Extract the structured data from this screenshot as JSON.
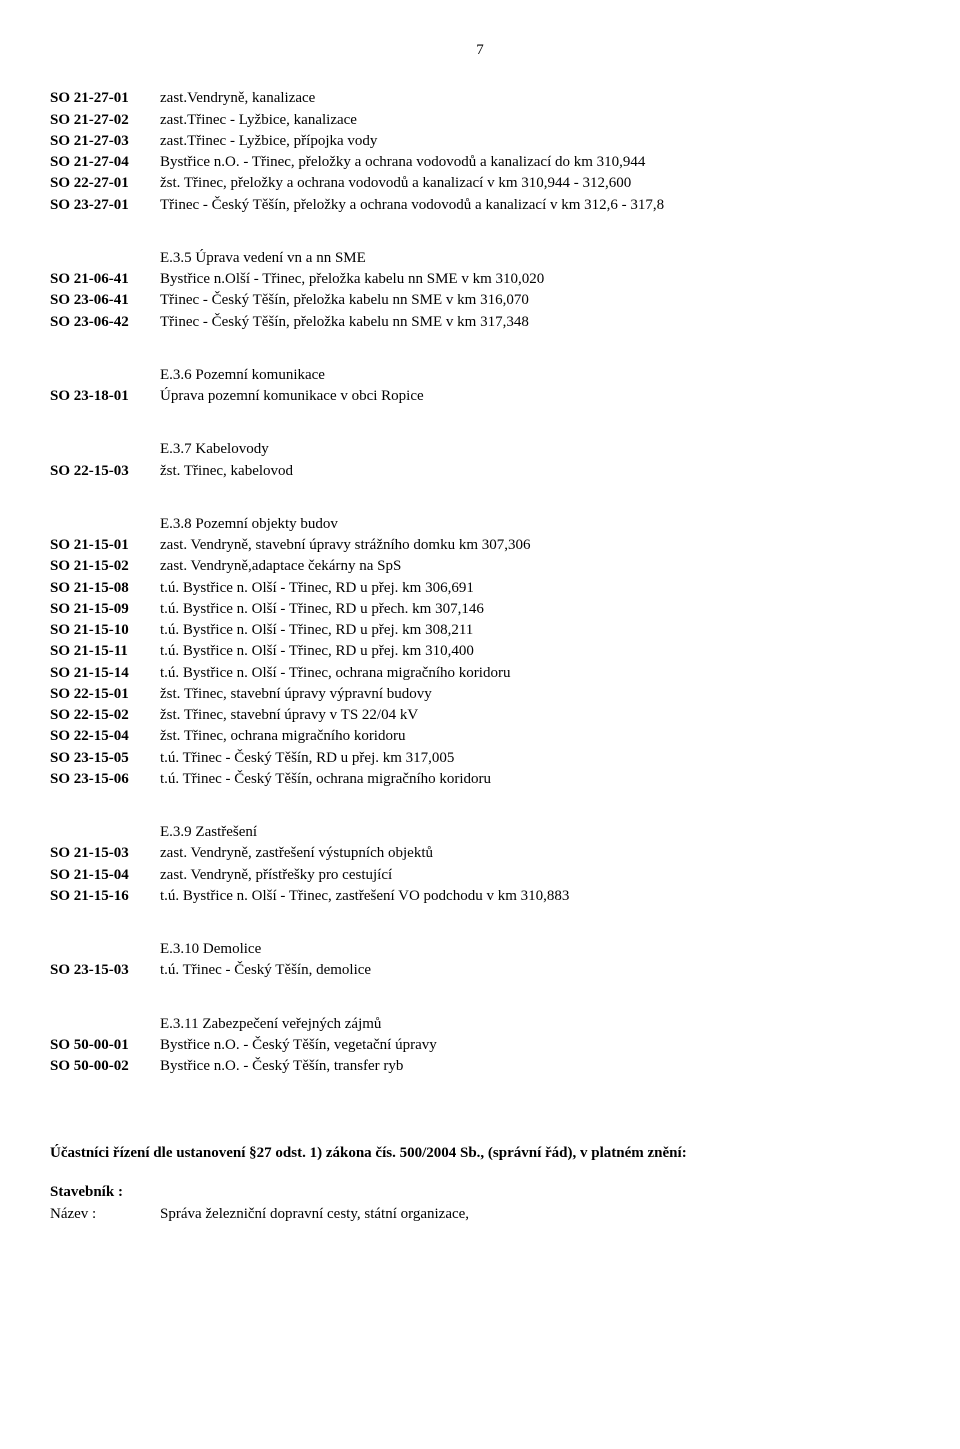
{
  "page_number": "7",
  "groups": [
    {
      "heading": null,
      "entries": [
        {
          "code": "SO 21-27-01",
          "desc": "zast.Vendryně, kanalizace"
        },
        {
          "code": "SO 21-27-02",
          "desc": "zast.Třinec - Lyžbice, kanalizace"
        },
        {
          "code": "SO 21-27-03",
          "desc": "zast.Třinec - Lyžbice, přípojka vody"
        },
        {
          "code": "SO 21-27-04",
          "desc": "Bystřice n.O. - Třinec, přeložky a ochrana vodovodů a kanalizací do km 310,944"
        },
        {
          "code": "SO 22-27-01",
          "desc": "žst. Třinec, přeložky a ochrana vodovodů a kanalizací v km 310,944 - 312,600"
        },
        {
          "code": "SO 23-27-01",
          "desc": "Třinec - Český Těšín, přeložky a ochrana vodovodů a  kanalizací v km 312,6 - 317,8"
        }
      ]
    },
    {
      "heading": "E.3.5 Úprava vedení vn a nn SME",
      "entries": [
        {
          "code": "SO 21-06-41",
          "desc": "Bystřice n.Olší - Třinec, přeložka kabelu nn SME v km 310,020"
        },
        {
          "code": "SO 23-06-41",
          "desc": "Třinec - Český Těšín, přeložka kabelu nn SME v km 316,070"
        },
        {
          "code": "SO 23-06-42",
          "desc": "Třinec - Český Těšín, přeložka kabelu nn SME v km 317,348"
        }
      ]
    },
    {
      "heading": "E.3.6 Pozemní komunikace",
      "entries": [
        {
          "code": "SO 23-18-01",
          "desc": "Úprava pozemní komunikace v obci Ropice"
        }
      ]
    },
    {
      "heading": "E.3.7 Kabelovody",
      "entries": [
        {
          "code": "SO 22-15-03",
          "desc": "žst. Třinec, kabelovod"
        }
      ]
    },
    {
      "heading": "E.3.8 Pozemní objekty budov",
      "entries": [
        {
          "code": "SO 21-15-01",
          "desc": "zast. Vendryně, stavební úpravy strážního domku km 307,306"
        },
        {
          "code": "SO 21-15-02",
          "desc": "zast. Vendryně,adaptace čekárny na SpS"
        },
        {
          "code": "SO 21-15-08",
          "desc": "t.ú. Bystřice n. Olší - Třinec, RD u přej. km 306,691"
        },
        {
          "code": "SO 21-15-09",
          "desc": "t.ú. Bystřice n. Olší - Třinec, RD u přech. km 307,146"
        },
        {
          "code": "SO 21-15-10",
          "desc": "t.ú. Bystřice n. Olší - Třinec, RD u přej. km 308,211"
        },
        {
          "code": "SO 21-15-11",
          "desc": "t.ú. Bystřice n. Olší - Třinec, RD u přej. km 310,400"
        },
        {
          "code": "SO 21-15-14",
          "desc": "t.ú. Bystřice n. Olší - Třinec, ochrana migračního koridoru"
        },
        {
          "code": "SO 22-15-01",
          "desc": "žst. Třinec, stavební úpravy výpravní budovy"
        },
        {
          "code": "SO 22-15-02",
          "desc": "žst. Třinec, stavební úpravy v TS 22/04 kV"
        },
        {
          "code": "SO 22-15-04",
          "desc": "žst. Třinec, ochrana migračního koridoru"
        },
        {
          "code": "SO 23-15-05",
          "desc": "t.ú. Třinec - Český Těšín, RD u přej. km 317,005"
        },
        {
          "code": "SO 23-15-06",
          "desc": "t.ú. Třinec - Český Těšín, ochrana migračního koridoru"
        }
      ]
    },
    {
      "heading": "E.3.9 Zastřešení",
      "entries": [
        {
          "code": "SO 21-15-03",
          "desc": "zast. Vendryně, zastřešení výstupních objektů"
        },
        {
          "code": "SO 21-15-04",
          "desc": "zast. Vendryně, přístřešky pro cestující"
        },
        {
          "code": "SO 21-15-16",
          "desc": "t.ú. Bystřice n. Olší - Třinec, zastřešení VO podchodu v km 310,883"
        }
      ]
    },
    {
      "heading": "E.3.10 Demolice",
      "entries": [
        {
          "code": "SO 23-15-03",
          "desc": "t.ú. Třinec - Český Těšín, demolice"
        }
      ]
    },
    {
      "heading": "E.3.11 Zabezpečení veřejných zájmů",
      "entries": [
        {
          "code": "SO 50-00-01",
          "desc": "Bystřice n.O. - Český Těšín, vegetační úpravy"
        },
        {
          "code": "SO 50-00-02",
          "desc": "Bystřice n.O. - Český Těšín, transfer ryb"
        }
      ]
    }
  ],
  "footer": {
    "participants_line": "Účastníci řízení  dle ustanovení §27 odst. 1)  zákona čís. 500/2004 Sb., (správní řád), v platném znění:",
    "builder_label": "Stavebník :",
    "name_label": "Název :",
    "name_value": "Správa železniční dopravní cesty, státní organizace,"
  }
}
